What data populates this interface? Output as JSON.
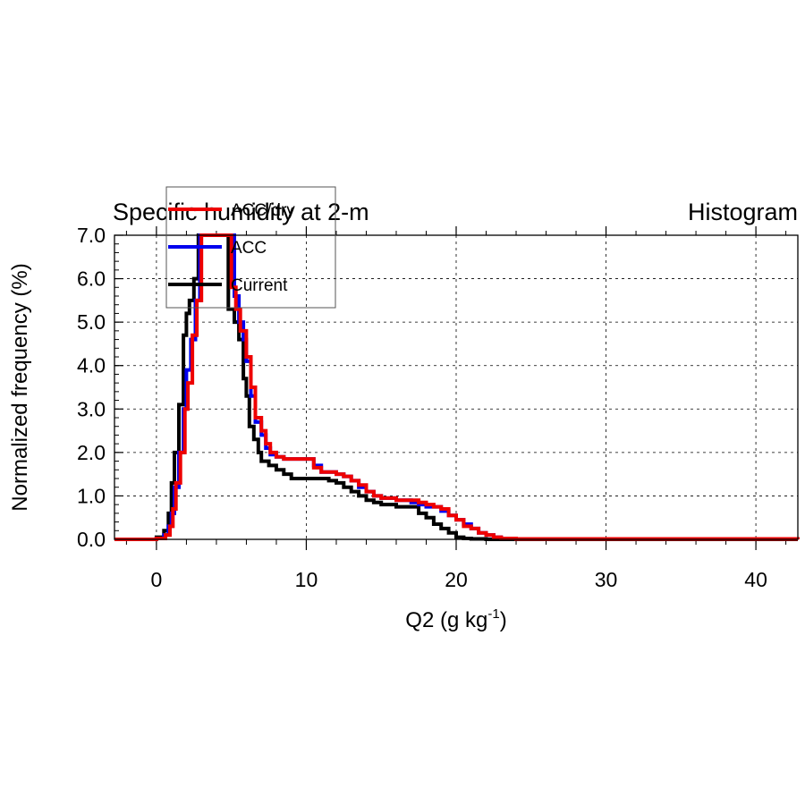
{
  "chart_data": {
    "type": "line",
    "step": true,
    "title_left": "Specific humidity at 2-m",
    "title_right": "Histogram",
    "xlabel_base": "Q2 (g kg",
    "xlabel_sup": "-1",
    "xlabel_close": ")",
    "ylabel": "Normalized frequency (%)",
    "xlim": [
      -2.8,
      42.8
    ],
    "ylim": [
      0,
      7
    ],
    "x_ticks": [
      0,
      10,
      20,
      30,
      40
    ],
    "x_tick_labels": [
      "0",
      "10",
      "20",
      "30",
      "40"
    ],
    "x_minor_step": 2,
    "y_ticks": [
      0,
      1,
      2,
      3,
      4,
      5,
      6,
      7
    ],
    "y_tick_labels": [
      "0.0",
      "1.0",
      "2.0",
      "3.0",
      "4.0",
      "5.0",
      "6.0",
      "7.0"
    ],
    "y_minor_step": 0.2,
    "grid": true,
    "legend_position": "top-left",
    "series": [
      {
        "name": "Current",
        "color": "#000000",
        "x": [
          -2.8,
          0,
          0.5,
          0.8,
          1.0,
          1.2,
          1.5,
          1.8,
          2.0,
          2.2,
          2.5,
          2.8,
          3.0,
          4.8,
          5.2,
          5.5,
          5.8,
          6.0,
          6.2,
          6.5,
          6.8,
          7.0,
          7.5,
          8.0,
          8.5,
          9.0,
          9.5,
          10.0,
          11.0,
          11.5,
          12.0,
          12.5,
          13.0,
          13.5,
          14.0,
          14.5,
          15.0,
          15.5,
          16.0,
          17.0,
          17.5,
          18.0,
          18.5,
          19.0,
          19.5,
          20.0,
          20.5,
          21.0,
          21.5,
          22.0,
          23.0,
          42.8
        ],
        "y": [
          0,
          0.05,
          0.2,
          0.6,
          1.3,
          2.0,
          3.1,
          4.7,
          5.2,
          5.5,
          6.0,
          7.0,
          7.0,
          5.3,
          5.0,
          4.6,
          3.7,
          3.3,
          2.6,
          2.3,
          2.0,
          1.8,
          1.7,
          1.6,
          1.5,
          1.4,
          1.4,
          1.4,
          1.4,
          1.35,
          1.3,
          1.2,
          1.1,
          1.0,
          0.9,
          0.85,
          0.8,
          0.8,
          0.75,
          0.75,
          0.6,
          0.5,
          0.35,
          0.25,
          0.15,
          0.05,
          0.02,
          0.01,
          0.01,
          0.0,
          0.0,
          0.0
        ]
      },
      {
        "name": "ACC",
        "color": "#0000ee",
        "x": [
          -2.8,
          0,
          0.5,
          0.8,
          1.0,
          1.2,
          1.5,
          1.8,
          2.0,
          2.3,
          2.6,
          2.9,
          3.2,
          5.2,
          5.5,
          5.8,
          6.0,
          6.3,
          6.6,
          7.0,
          7.3,
          7.6,
          8.0,
          8.5,
          9.0,
          10.0,
          10.5,
          11.0,
          12.0,
          12.5,
          13.0,
          13.5,
          14.0,
          14.5,
          15.0,
          16.0,
          17.0,
          17.5,
          18.0,
          18.5,
          19.0,
          19.5,
          20.0,
          20.5,
          21.0,
          21.5,
          22.0,
          22.5,
          23.0,
          24.0,
          42.8
        ],
        "y": [
          0,
          0.02,
          0.1,
          0.3,
          0.6,
          1.2,
          2.0,
          3.0,
          3.9,
          4.6,
          5.5,
          7.0,
          7.0,
          5.6,
          5.0,
          4.6,
          4.1,
          3.3,
          2.7,
          2.4,
          2.1,
          1.95,
          1.9,
          1.85,
          1.85,
          1.85,
          1.7,
          1.55,
          1.5,
          1.45,
          1.35,
          1.2,
          1.1,
          1.0,
          0.95,
          0.9,
          0.85,
          0.8,
          0.75,
          0.75,
          0.65,
          0.55,
          0.45,
          0.35,
          0.25,
          0.15,
          0.1,
          0.05,
          0.02,
          0.01,
          0.0
        ]
      },
      {
        "name": "ACC/dry",
        "color": "#ee0000",
        "x": [
          -2.8,
          0,
          0.6,
          0.9,
          1.1,
          1.3,
          1.6,
          1.9,
          2.1,
          2.4,
          2.7,
          3.0,
          3.3,
          5.0,
          5.3,
          5.6,
          6.0,
          6.3,
          6.6,
          7.0,
          7.3,
          7.6,
          8.0,
          8.5,
          9.0,
          10.0,
          10.5,
          11.0,
          12.0,
          12.5,
          13.0,
          13.5,
          14.0,
          14.5,
          15.0,
          16.0,
          17.0,
          17.5,
          18.0,
          18.5,
          19.0,
          19.5,
          20.0,
          20.5,
          21.0,
          21.5,
          22.0,
          22.5,
          23.0,
          24.0,
          42.8
        ],
        "y": [
          0,
          0.02,
          0.1,
          0.3,
          0.7,
          1.3,
          2.0,
          3.0,
          3.6,
          4.7,
          5.5,
          7.0,
          7.0,
          5.8,
          5.3,
          4.8,
          4.2,
          3.5,
          2.8,
          2.5,
          2.2,
          2.0,
          1.9,
          1.85,
          1.85,
          1.85,
          1.65,
          1.55,
          1.5,
          1.45,
          1.35,
          1.25,
          1.1,
          1.0,
          0.95,
          0.9,
          0.9,
          0.85,
          0.8,
          0.75,
          0.7,
          0.55,
          0.45,
          0.3,
          0.25,
          0.15,
          0.1,
          0.05,
          0.02,
          0.01,
          0.0
        ]
      }
    ],
    "legend": [
      {
        "label": "ACC/dry",
        "color": "#ee0000"
      },
      {
        "label": "ACC",
        "color": "#0000ee"
      },
      {
        "label": "Current",
        "color": "#000000"
      }
    ]
  }
}
